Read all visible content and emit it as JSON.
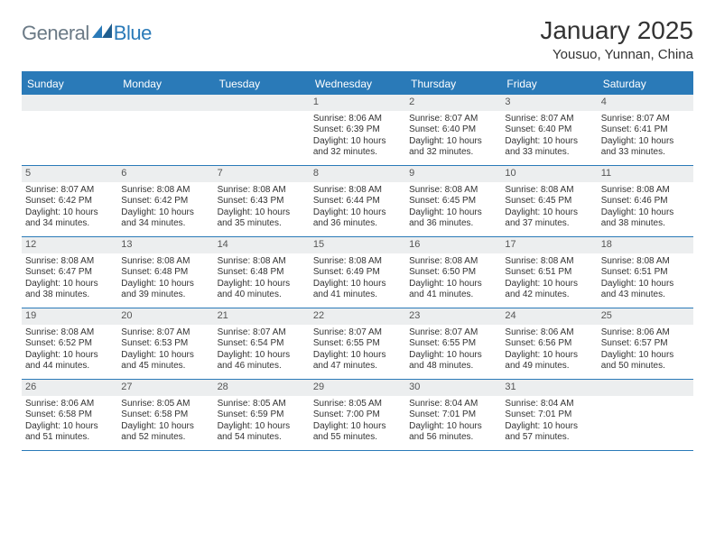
{
  "brand": {
    "part1": "General",
    "part2": "Blue"
  },
  "title": "January 2025",
  "location": "Yousuo, Yunnan, China",
  "colors": {
    "accent": "#2a7ab8",
    "headerText": "#ffffff",
    "dayNumBg": "#eceeef",
    "bodyText": "#333333",
    "logoGray": "#6b7a86"
  },
  "dayHeaders": [
    "Sunday",
    "Monday",
    "Tuesday",
    "Wednesday",
    "Thursday",
    "Friday",
    "Saturday"
  ],
  "weeks": [
    [
      {
        "day": "",
        "lines": []
      },
      {
        "day": "",
        "lines": []
      },
      {
        "day": "",
        "lines": []
      },
      {
        "day": "1",
        "lines": [
          "Sunrise: 8:06 AM",
          "Sunset: 6:39 PM",
          "Daylight: 10 hours",
          "and 32 minutes."
        ]
      },
      {
        "day": "2",
        "lines": [
          "Sunrise: 8:07 AM",
          "Sunset: 6:40 PM",
          "Daylight: 10 hours",
          "and 32 minutes."
        ]
      },
      {
        "day": "3",
        "lines": [
          "Sunrise: 8:07 AM",
          "Sunset: 6:40 PM",
          "Daylight: 10 hours",
          "and 33 minutes."
        ]
      },
      {
        "day": "4",
        "lines": [
          "Sunrise: 8:07 AM",
          "Sunset: 6:41 PM",
          "Daylight: 10 hours",
          "and 33 minutes."
        ]
      }
    ],
    [
      {
        "day": "5",
        "lines": [
          "Sunrise: 8:07 AM",
          "Sunset: 6:42 PM",
          "Daylight: 10 hours",
          "and 34 minutes."
        ]
      },
      {
        "day": "6",
        "lines": [
          "Sunrise: 8:08 AM",
          "Sunset: 6:42 PM",
          "Daylight: 10 hours",
          "and 34 minutes."
        ]
      },
      {
        "day": "7",
        "lines": [
          "Sunrise: 8:08 AM",
          "Sunset: 6:43 PM",
          "Daylight: 10 hours",
          "and 35 minutes."
        ]
      },
      {
        "day": "8",
        "lines": [
          "Sunrise: 8:08 AM",
          "Sunset: 6:44 PM",
          "Daylight: 10 hours",
          "and 36 minutes."
        ]
      },
      {
        "day": "9",
        "lines": [
          "Sunrise: 8:08 AM",
          "Sunset: 6:45 PM",
          "Daylight: 10 hours",
          "and 36 minutes."
        ]
      },
      {
        "day": "10",
        "lines": [
          "Sunrise: 8:08 AM",
          "Sunset: 6:45 PM",
          "Daylight: 10 hours",
          "and 37 minutes."
        ]
      },
      {
        "day": "11",
        "lines": [
          "Sunrise: 8:08 AM",
          "Sunset: 6:46 PM",
          "Daylight: 10 hours",
          "and 38 minutes."
        ]
      }
    ],
    [
      {
        "day": "12",
        "lines": [
          "Sunrise: 8:08 AM",
          "Sunset: 6:47 PM",
          "Daylight: 10 hours",
          "and 38 minutes."
        ]
      },
      {
        "day": "13",
        "lines": [
          "Sunrise: 8:08 AM",
          "Sunset: 6:48 PM",
          "Daylight: 10 hours",
          "and 39 minutes."
        ]
      },
      {
        "day": "14",
        "lines": [
          "Sunrise: 8:08 AM",
          "Sunset: 6:48 PM",
          "Daylight: 10 hours",
          "and 40 minutes."
        ]
      },
      {
        "day": "15",
        "lines": [
          "Sunrise: 8:08 AM",
          "Sunset: 6:49 PM",
          "Daylight: 10 hours",
          "and 41 minutes."
        ]
      },
      {
        "day": "16",
        "lines": [
          "Sunrise: 8:08 AM",
          "Sunset: 6:50 PM",
          "Daylight: 10 hours",
          "and 41 minutes."
        ]
      },
      {
        "day": "17",
        "lines": [
          "Sunrise: 8:08 AM",
          "Sunset: 6:51 PM",
          "Daylight: 10 hours",
          "and 42 minutes."
        ]
      },
      {
        "day": "18",
        "lines": [
          "Sunrise: 8:08 AM",
          "Sunset: 6:51 PM",
          "Daylight: 10 hours",
          "and 43 minutes."
        ]
      }
    ],
    [
      {
        "day": "19",
        "lines": [
          "Sunrise: 8:08 AM",
          "Sunset: 6:52 PM",
          "Daylight: 10 hours",
          "and 44 minutes."
        ]
      },
      {
        "day": "20",
        "lines": [
          "Sunrise: 8:07 AM",
          "Sunset: 6:53 PM",
          "Daylight: 10 hours",
          "and 45 minutes."
        ]
      },
      {
        "day": "21",
        "lines": [
          "Sunrise: 8:07 AM",
          "Sunset: 6:54 PM",
          "Daylight: 10 hours",
          "and 46 minutes."
        ]
      },
      {
        "day": "22",
        "lines": [
          "Sunrise: 8:07 AM",
          "Sunset: 6:55 PM",
          "Daylight: 10 hours",
          "and 47 minutes."
        ]
      },
      {
        "day": "23",
        "lines": [
          "Sunrise: 8:07 AM",
          "Sunset: 6:55 PM",
          "Daylight: 10 hours",
          "and 48 minutes."
        ]
      },
      {
        "day": "24",
        "lines": [
          "Sunrise: 8:06 AM",
          "Sunset: 6:56 PM",
          "Daylight: 10 hours",
          "and 49 minutes."
        ]
      },
      {
        "day": "25",
        "lines": [
          "Sunrise: 8:06 AM",
          "Sunset: 6:57 PM",
          "Daylight: 10 hours",
          "and 50 minutes."
        ]
      }
    ],
    [
      {
        "day": "26",
        "lines": [
          "Sunrise: 8:06 AM",
          "Sunset: 6:58 PM",
          "Daylight: 10 hours",
          "and 51 minutes."
        ]
      },
      {
        "day": "27",
        "lines": [
          "Sunrise: 8:05 AM",
          "Sunset: 6:58 PM",
          "Daylight: 10 hours",
          "and 52 minutes."
        ]
      },
      {
        "day": "28",
        "lines": [
          "Sunrise: 8:05 AM",
          "Sunset: 6:59 PM",
          "Daylight: 10 hours",
          "and 54 minutes."
        ]
      },
      {
        "day": "29",
        "lines": [
          "Sunrise: 8:05 AM",
          "Sunset: 7:00 PM",
          "Daylight: 10 hours",
          "and 55 minutes."
        ]
      },
      {
        "day": "30",
        "lines": [
          "Sunrise: 8:04 AM",
          "Sunset: 7:01 PM",
          "Daylight: 10 hours",
          "and 56 minutes."
        ]
      },
      {
        "day": "31",
        "lines": [
          "Sunrise: 8:04 AM",
          "Sunset: 7:01 PM",
          "Daylight: 10 hours",
          "and 57 minutes."
        ]
      },
      {
        "day": "",
        "lines": []
      }
    ]
  ]
}
